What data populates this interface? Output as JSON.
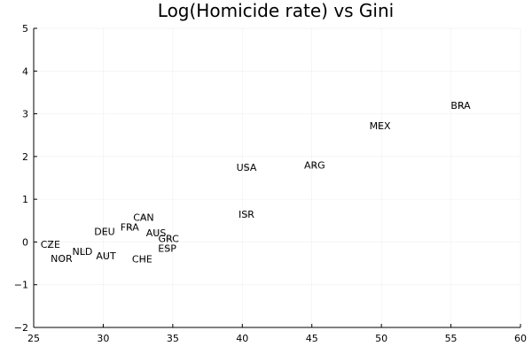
{
  "chart_data": {
    "type": "scatter",
    "title": "Log(Homicide rate) vs Gini",
    "xlabel": "",
    "ylabel": "",
    "xlim": [
      25,
      60
    ],
    "ylim": [
      -2,
      5
    ],
    "xticks": [
      "25",
      "30",
      "35",
      "40",
      "45",
      "50",
      "55",
      "60"
    ],
    "yticks": [
      "−2",
      "−1",
      "0",
      "1",
      "2",
      "3",
      "4",
      "5"
    ],
    "grid": true,
    "legend": "none",
    "point_color": "#888888",
    "labeled_points": [
      {
        "label": "CZE",
        "x": 26.2,
        "y": -0.05
      },
      {
        "label": "NOR",
        "x": 27.0,
        "y": -0.38
      },
      {
        "label": "NLD",
        "x": 28.5,
        "y": -0.22
      },
      {
        "label": "AUT",
        "x": 30.2,
        "y": -0.32
      },
      {
        "label": "DEU",
        "x": 30.1,
        "y": 0.25
      },
      {
        "label": "FRA",
        "x": 31.9,
        "y": 0.35
      },
      {
        "label": "CAN",
        "x": 32.9,
        "y": 0.58
      },
      {
        "label": "AUS",
        "x": 33.8,
        "y": 0.22
      },
      {
        "label": "GRC",
        "x": 34.7,
        "y": 0.08
      },
      {
        "label": "ESP",
        "x": 34.6,
        "y": -0.15
      },
      {
        "label": "CHE",
        "x": 32.8,
        "y": -0.4
      },
      {
        "label": "USA",
        "x": 40.3,
        "y": 1.75
      },
      {
        "label": "ISR",
        "x": 40.3,
        "y": 0.65
      },
      {
        "label": "ARG",
        "x": 45.2,
        "y": 1.8
      },
      {
        "label": "MEX",
        "x": 49.9,
        "y": 2.72
      },
      {
        "label": "BRA",
        "x": 55.7,
        "y": 3.2
      }
    ]
  }
}
